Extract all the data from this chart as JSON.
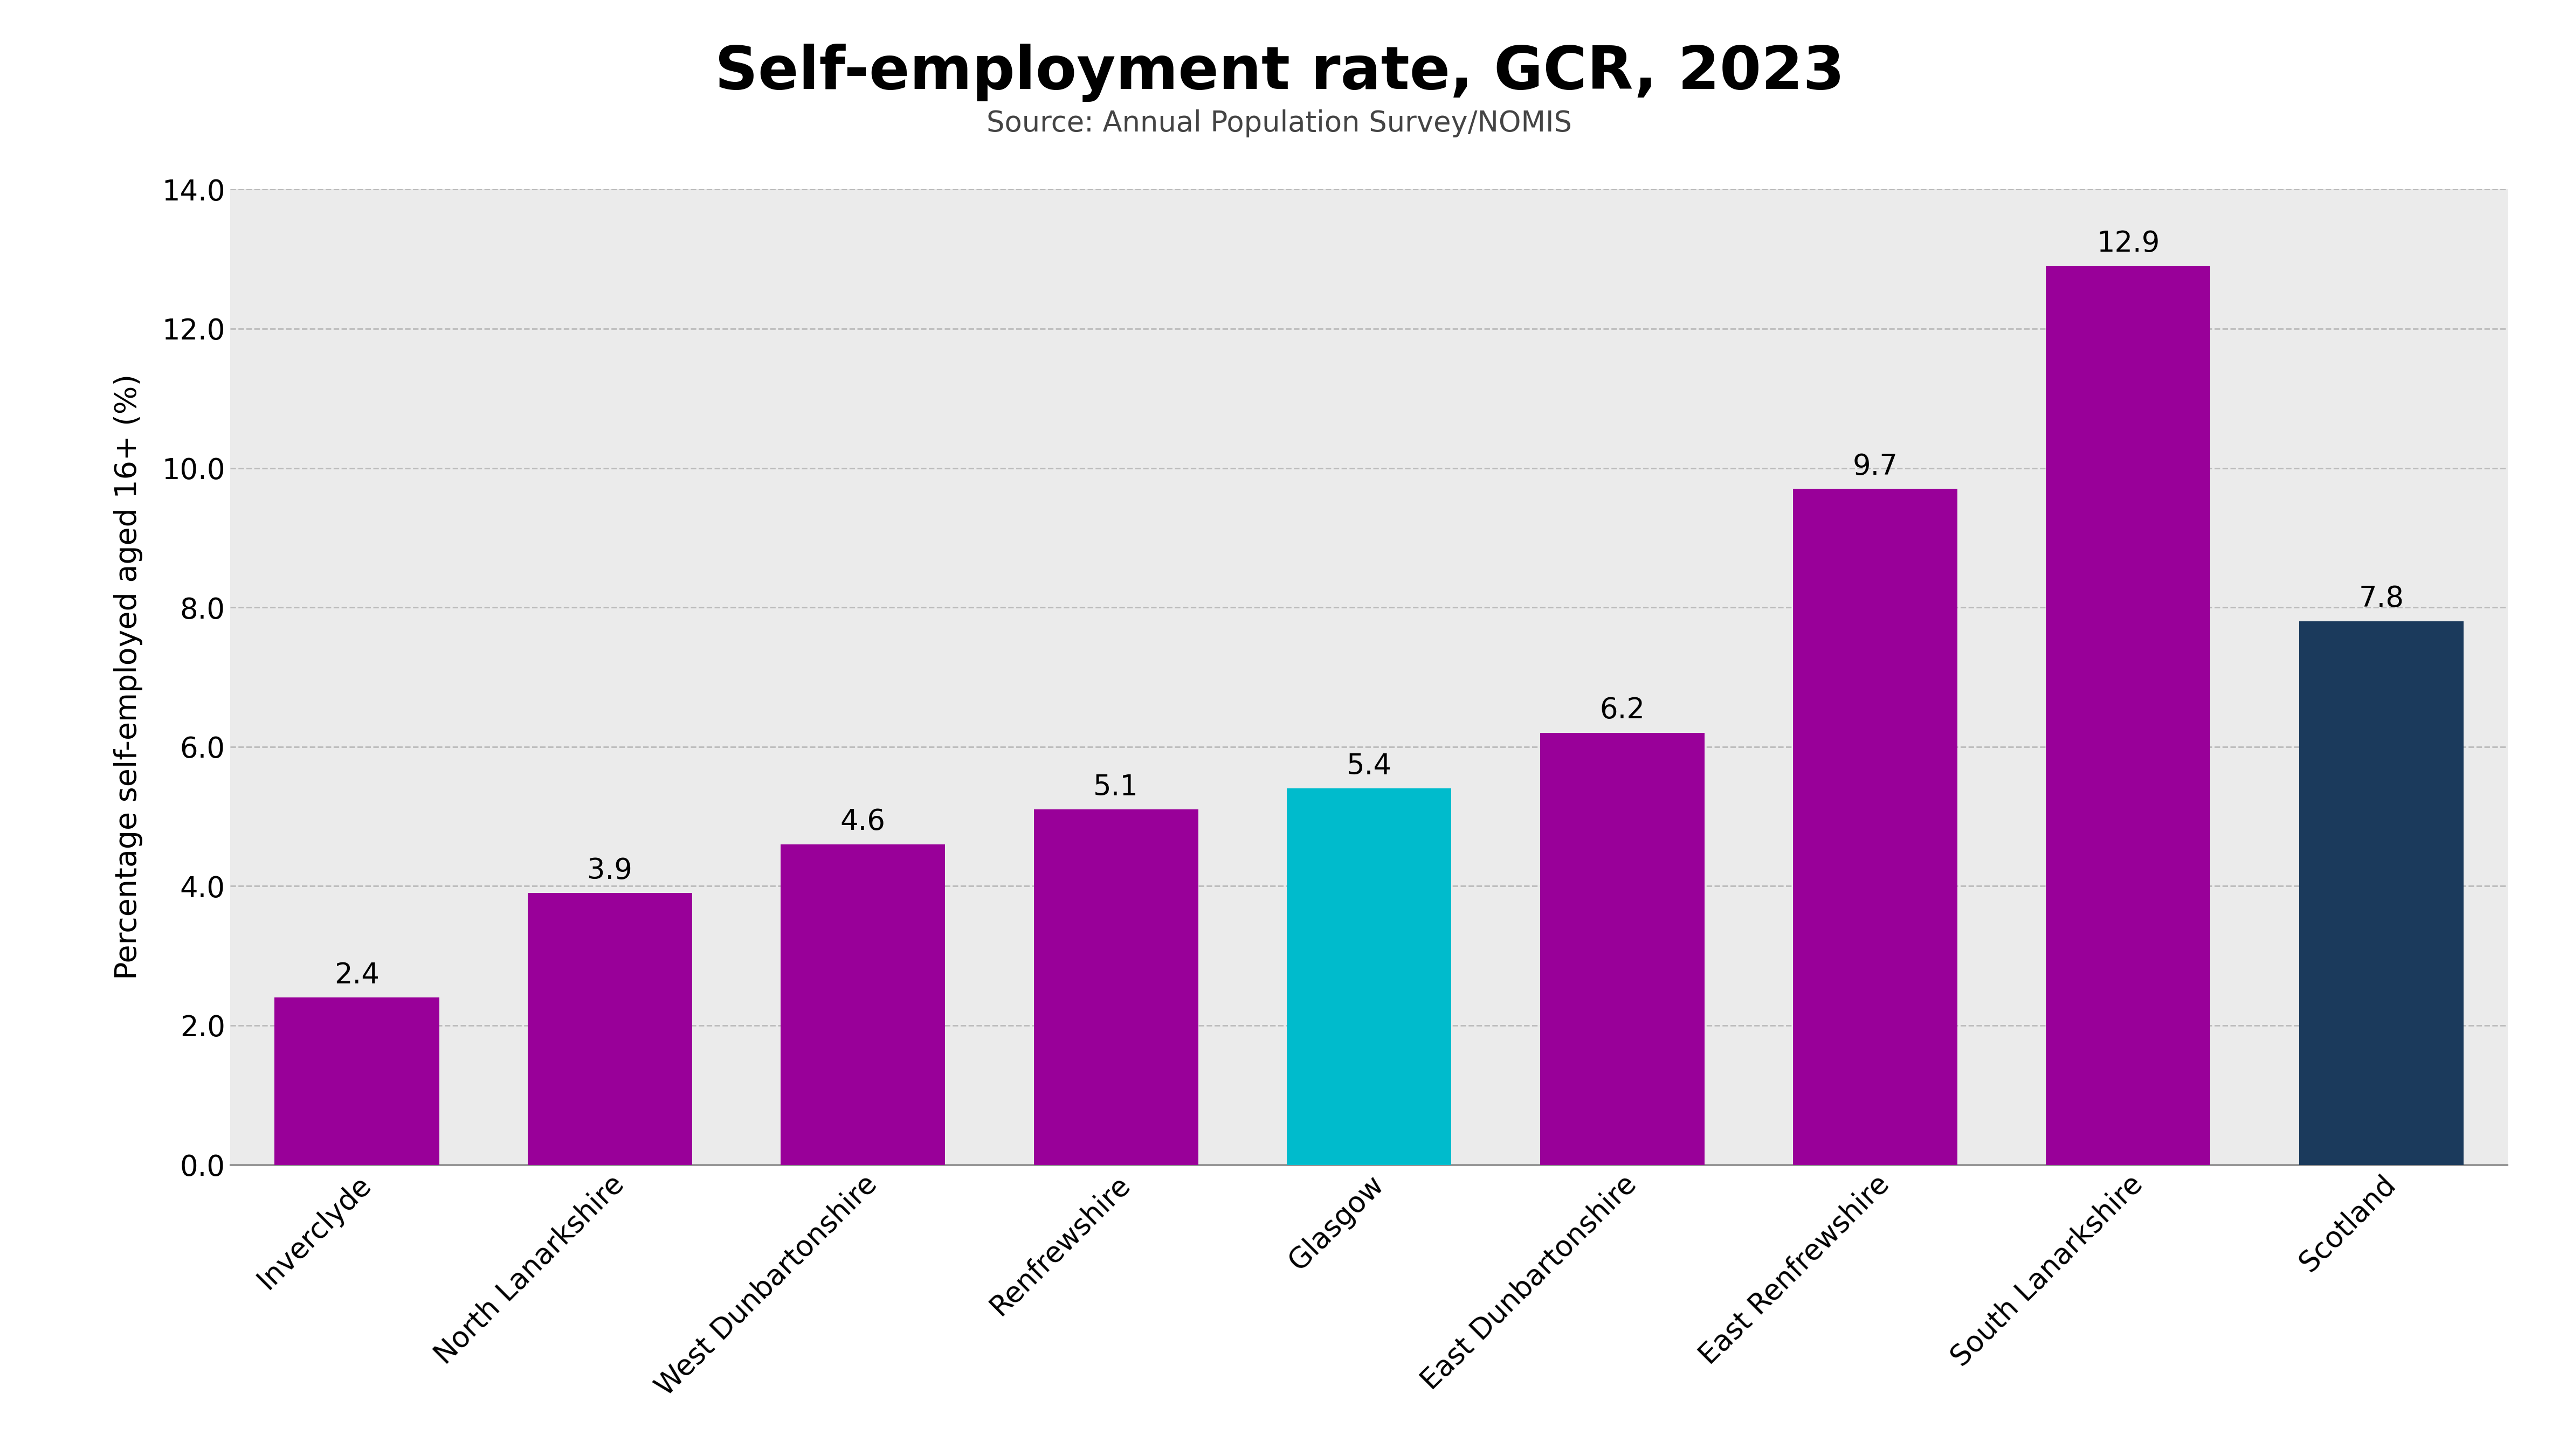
{
  "title": "Self-employment rate, GCR, 2023",
  "subtitle": "Source: Annual Population Survey/NOMIS",
  "categories": [
    "Inverclyde",
    "North Lanarkshire",
    "West Dunbartonshire",
    "Renfrewshire",
    "Glasgow",
    "East Dunbartonshire",
    "East Renfrewshire",
    "South Lanarkshire",
    "Scotland"
  ],
  "values": [
    2.4,
    3.9,
    4.6,
    5.1,
    5.4,
    6.2,
    9.7,
    12.9,
    7.8
  ],
  "bar_colors": [
    "#990099",
    "#990099",
    "#990099",
    "#990099",
    "#00BBCC",
    "#990099",
    "#990099",
    "#990099",
    "#1B3A5C"
  ],
  "ylabel": "Percentage self-employed aged 16+ (%)",
  "ylim": [
    0,
    14.0
  ],
  "yticks": [
    0.0,
    2.0,
    4.0,
    6.0,
    8.0,
    10.0,
    12.0,
    14.0
  ],
  "plot_bg_color": "#ebebeb",
  "fig_bg_color": "#ffffff",
  "title_fontsize": 80,
  "subtitle_fontsize": 38,
  "ylabel_fontsize": 40,
  "tick_fontsize": 38,
  "bar_label_fontsize": 38,
  "bar_width": 0.65,
  "grid_color": "#bbbbbb",
  "grid_linestyle": "--",
  "grid_linewidth": 2.0
}
